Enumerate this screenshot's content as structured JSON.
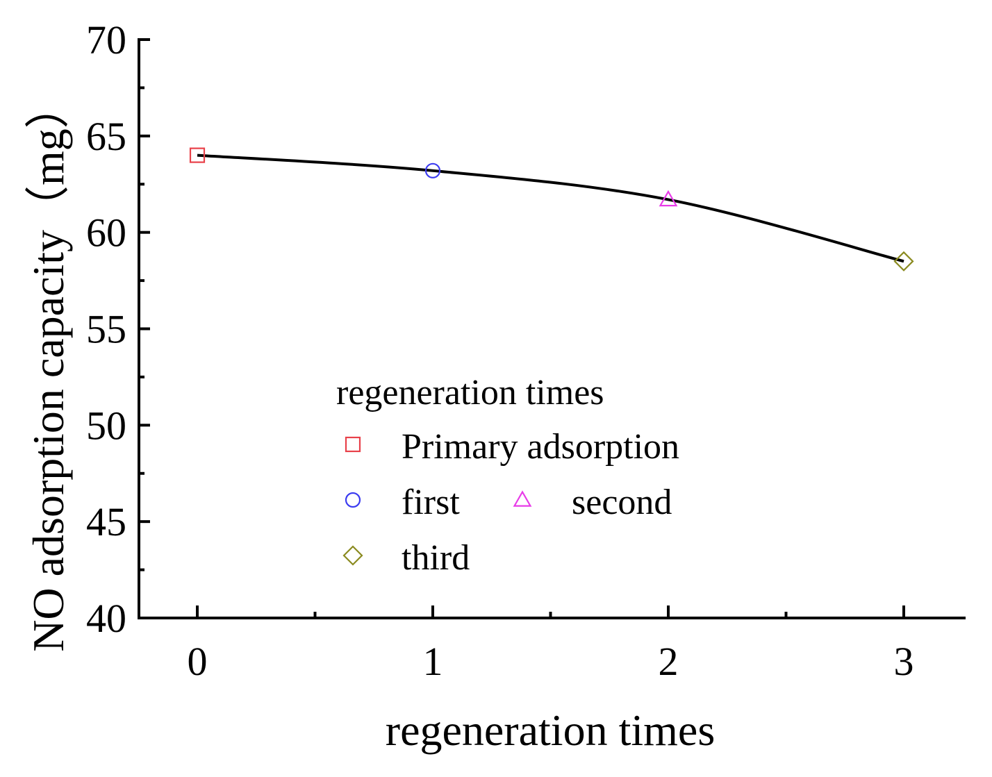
{
  "chart_data": {
    "type": "line",
    "title": "",
    "xlabel": "regeneration times",
    "ylabel": "NO adsorption capacity（mg）",
    "xlim": [
      -0.25,
      3.25
    ],
    "ylim": [
      40,
      70
    ],
    "x_ticks": [
      0,
      1,
      2,
      3
    ],
    "x_tick_labels": [
      "0",
      "1",
      "2",
      "3"
    ],
    "y_ticks": [
      40,
      45,
      50,
      55,
      60,
      65,
      70
    ],
    "y_tick_labels": [
      "40",
      "45",
      "50",
      "55",
      "60",
      "65",
      "70"
    ],
    "grid": false,
    "line_color": "#000000",
    "series": [
      {
        "name": "Primary adsorption",
        "x": 0,
        "y": 64.0,
        "marker": "square",
        "color": "#e8414a"
      },
      {
        "name": "first",
        "x": 1,
        "y": 63.2,
        "marker": "circle",
        "color": "#3b3bf0"
      },
      {
        "name": "second",
        "x": 2,
        "y": 61.7,
        "marker": "triangle",
        "color": "#e83be8"
      },
      {
        "name": "third",
        "x": 3,
        "y": 58.5,
        "marker": "diamond",
        "color": "#8a8a1f"
      }
    ],
    "legend": {
      "title": "regeneration times",
      "placement": "center"
    }
  }
}
